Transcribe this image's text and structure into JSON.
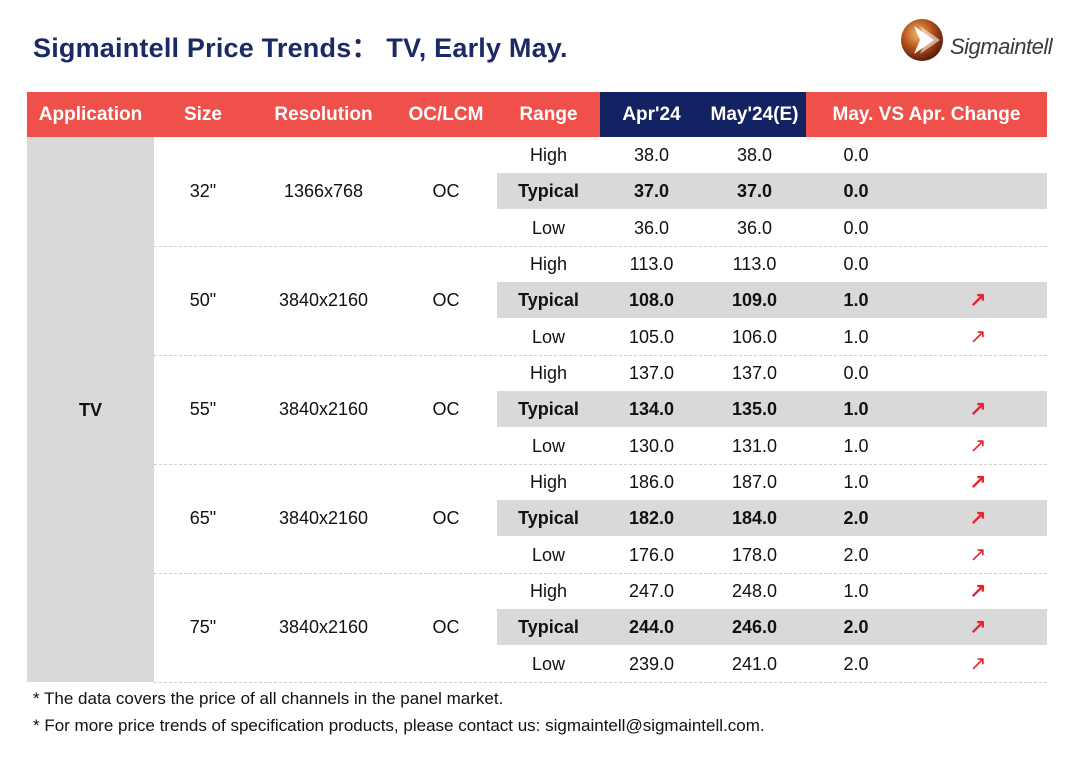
{
  "title": "Sigmaintell Price Trends： TV, Early May.",
  "logo_text": "Sigmaintell",
  "colors": {
    "header_bg": "#f0504a",
    "header_dark": "#132263",
    "title": "#1c2a63",
    "up_arrow": "#e8242c",
    "row_shade": "#d9d9d9"
  },
  "chart_data": {
    "type": "table",
    "headers": {
      "application": "Application",
      "size": "Size",
      "resolution": "Resolution",
      "oc_lcm": "OC/LCM",
      "range": "Range",
      "apr": "Apr'24",
      "may": "May'24(E)",
      "change": "May. VS Apr. Change"
    },
    "application": "TV",
    "groups": [
      {
        "size": "32\"",
        "resolution": "1366x768",
        "oc_lcm": "OC",
        "rows": [
          {
            "range": "High",
            "apr": "38.0",
            "may": "38.0",
            "change": "0.0",
            "trend": ""
          },
          {
            "range": "Typical",
            "apr": "37.0",
            "may": "37.0",
            "change": "0.0",
            "trend": ""
          },
          {
            "range": "Low",
            "apr": "36.0",
            "may": "36.0",
            "change": "0.0",
            "trend": ""
          }
        ]
      },
      {
        "size": "50\"",
        "resolution": "3840x2160",
        "oc_lcm": "OC",
        "rows": [
          {
            "range": "High",
            "apr": "113.0",
            "may": "113.0",
            "change": "0.0",
            "trend": ""
          },
          {
            "range": "Typical",
            "apr": "108.0",
            "may": "109.0",
            "change": "1.0",
            "trend": "up"
          },
          {
            "range": "Low",
            "apr": "105.0",
            "may": "106.0",
            "change": "1.0",
            "trend": "up"
          }
        ]
      },
      {
        "size": "55\"",
        "resolution": "3840x2160",
        "oc_lcm": "OC",
        "rows": [
          {
            "range": "High",
            "apr": "137.0",
            "may": "137.0",
            "change": "0.0",
            "trend": ""
          },
          {
            "range": "Typical",
            "apr": "134.0",
            "may": "135.0",
            "change": "1.0",
            "trend": "up"
          },
          {
            "range": "Low",
            "apr": "130.0",
            "may": "131.0",
            "change": "1.0",
            "trend": "up"
          }
        ]
      },
      {
        "size": "65\"",
        "resolution": "3840x2160",
        "oc_lcm": "OC",
        "rows": [
          {
            "range": "High",
            "apr": "186.0",
            "may": "187.0",
            "change": "1.0",
            "trend": "up"
          },
          {
            "range": "Typical",
            "apr": "182.0",
            "may": "184.0",
            "change": "2.0",
            "trend": "up"
          },
          {
            "range": "Low",
            "apr": "176.0",
            "may": "178.0",
            "change": "2.0",
            "trend": "up"
          }
        ]
      },
      {
        "size": "75\"",
        "resolution": "3840x2160",
        "oc_lcm": "OC",
        "rows": [
          {
            "range": "High",
            "apr": "247.0",
            "may": "248.0",
            "change": "1.0",
            "trend": "up"
          },
          {
            "range": "Typical",
            "apr": "244.0",
            "may": "246.0",
            "change": "2.0",
            "trend": "up"
          },
          {
            "range": "Low",
            "apr": "239.0",
            "may": "241.0",
            "change": "2.0",
            "trend": "up"
          }
        ]
      }
    ]
  },
  "notes": [
    "* The data covers the price of all channels in the panel market.",
    "* For more price trends of specification products, please contact us: sigmaintell@sigmaintell.com."
  ]
}
